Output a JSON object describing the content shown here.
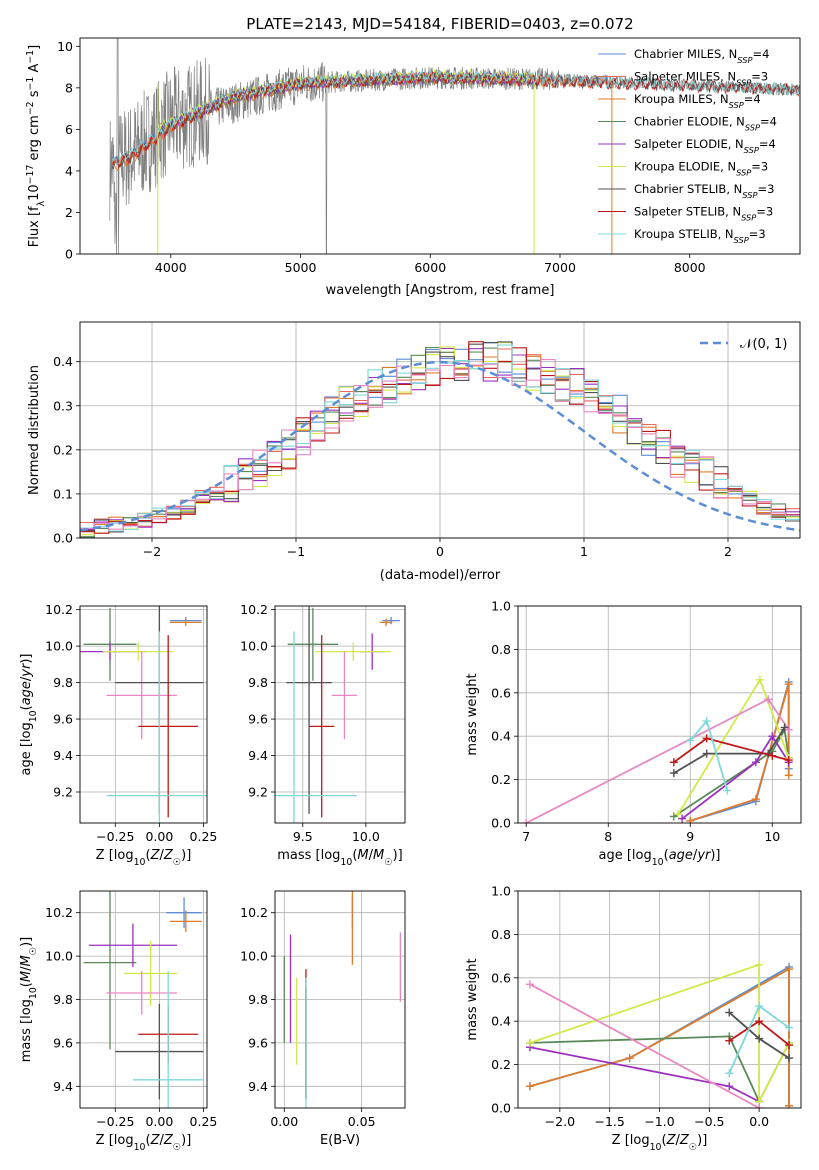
{
  "chart_data": [
    {
      "type": "line",
      "title": "PLATE=2143, MJD=54184, FIBERID=0403, z=0.072",
      "xlabel": "wavelength [Angstrom, rest frame]",
      "ylabel": "Flux [fλ10^-17 erg cm^-2 s^-1 A^-1]",
      "xlim": [
        3300,
        8850
      ],
      "ylim": [
        0,
        10.4
      ],
      "xticks": [
        4000,
        5000,
        6000,
        7000,
        8000
      ],
      "yticks": [
        0,
        2,
        4,
        6,
        8,
        10
      ],
      "grid": false,
      "legend_position": "top-right",
      "data_series": {
        "name": "data",
        "color": "#808080",
        "x_range": [
          3530,
          8850
        ],
        "description_values": {
          "start_flux": 4.3,
          "plateau_flux": 8.3,
          "end_flux": 7.9
        }
      },
      "series": [
        {
          "name": "Chabrier MILES",
          "nssp": "4",
          "color": "#5b8ed6",
          "x": [
            3550,
            3700,
            4000,
            4500,
            5000,
            6000,
            7000,
            7400
          ],
          "y": [
            4.4,
            4.8,
            6.2,
            7.6,
            8.2,
            8.5,
            8.4,
            8.3
          ]
        },
        {
          "name": "Salpeter MILES",
          "nssp": "3",
          "color": "#e86a5c",
          "x": [
            3550,
            3700,
            4000,
            4500,
            5000,
            6000,
            7000,
            7400
          ],
          "y": [
            4.3,
            4.7,
            6.1,
            7.6,
            8.2,
            8.5,
            8.4,
            8.3
          ]
        },
        {
          "name": "Kroupa MILES",
          "nssp": "4",
          "color": "#e07b2a",
          "x": [
            3550,
            3700,
            4000,
            4500,
            5000,
            6000,
            7000,
            7400
          ],
          "y": [
            4.2,
            4.6,
            6.1,
            7.5,
            8.1,
            8.5,
            8.3,
            8.3
          ]
        },
        {
          "name": "Chabrier ELODIE",
          "nssp": "4",
          "color": "#5a8a5a",
          "x": [
            3900,
            4000,
            4500,
            5000,
            6000,
            6800
          ],
          "y": [
            6.0,
            6.3,
            7.6,
            8.2,
            8.5,
            8.4
          ]
        },
        {
          "name": "Salpeter ELODIE",
          "nssp": "4",
          "color": "#9b30c0",
          "x": [
            3900,
            4000,
            4500,
            5000,
            6000,
            6800
          ],
          "y": [
            6.0,
            6.3,
            7.6,
            8.2,
            8.5,
            8.4
          ]
        },
        {
          "name": "Kroupa ELODIE",
          "nssp": "3",
          "color": "#d4e84a",
          "x": [
            3900,
            4000,
            4500,
            5000,
            6000,
            6800
          ],
          "y": [
            6.0,
            6.4,
            7.7,
            8.3,
            8.6,
            8.5
          ]
        },
        {
          "name": "Chabrier STELIB",
          "nssp": "3",
          "color": "#505050",
          "x": [
            3550,
            3700,
            4000,
            4500,
            5000,
            6000,
            7000,
            8850
          ],
          "y": [
            4.3,
            4.7,
            6.1,
            7.6,
            8.2,
            8.5,
            8.3,
            7.9
          ]
        },
        {
          "name": "Salpeter STELIB",
          "nssp": "3",
          "color": "#c01818",
          "x": [
            3550,
            3700,
            4000,
            4500,
            5000,
            6000,
            7000,
            8850
          ],
          "y": [
            4.3,
            4.7,
            6.1,
            7.6,
            8.2,
            8.5,
            8.3,
            7.9
          ]
        },
        {
          "name": "Kroupa STELIB",
          "nssp": "3",
          "color": "#7fd8d8",
          "x": [
            3550,
            3700,
            4000,
            4500,
            5000,
            6000,
            7000,
            8850
          ],
          "y": [
            4.4,
            4.9,
            6.3,
            7.7,
            8.3,
            8.6,
            8.4,
            7.9
          ]
        }
      ]
    },
    {
      "type": "step",
      "xlabel": "(data-model)/error",
      "ylabel": "Normed distribution",
      "xlim": [
        -2.5,
        2.5
      ],
      "ylim": [
        0,
        0.49
      ],
      "xticks": [
        "−2",
        "−1",
        "0",
        "1",
        "2"
      ],
      "xtick_values": [
        -2,
        -1,
        0,
        1,
        2
      ],
      "yticks": [
        0.0,
        0.1,
        0.2,
        0.3,
        0.4
      ],
      "grid": true,
      "reference": {
        "label": "𝒩(0, 1)",
        "mean": 0,
        "sigma": 1,
        "color": "#5b8ed6"
      },
      "bin_width": 0.1,
      "bin_start": -2.5,
      "base_values": [
        0.02,
        0.025,
        0.03,
        0.035,
        0.04,
        0.05,
        0.06,
        0.07,
        0.09,
        0.1,
        0.12,
        0.14,
        0.16,
        0.18,
        0.2,
        0.23,
        0.25,
        0.28,
        0.3,
        0.32,
        0.34,
        0.35,
        0.37,
        0.38,
        0.39,
        0.4,
        0.4,
        0.41,
        0.4,
        0.4,
        0.39,
        0.38,
        0.37,
        0.35,
        0.34,
        0.32,
        0.3,
        0.28,
        0.25,
        0.23,
        0.2,
        0.18,
        0.16,
        0.14,
        0.12,
        0.1,
        0.09,
        0.07,
        0.06,
        0.05
      ],
      "series_colors": [
        "#5b8ed6",
        "#e86a5c",
        "#e07b2a",
        "#5a8a5a",
        "#9b30c0",
        "#d4e84a",
        "#505050",
        "#c01818",
        "#7fd8d8",
        "#e987c3"
      ]
    },
    {
      "type": "errorbar",
      "xlabel": "Z [log10(Z/Z☉)]",
      "ylabel": "age [log10(age/yr)]",
      "xlim": [
        -0.45,
        0.27
      ],
      "ylim": [
        9.03,
        10.22
      ],
      "xticks": [
        "−0.25",
        "0.00",
        "0.25"
      ],
      "xtick_values": [
        -0.25,
        0,
        0.25
      ],
      "yticks": [
        "9.2",
        "9.4",
        "9.6",
        "9.8",
        "10.0",
        "10.2"
      ],
      "ytick_values": [
        9.2,
        9.4,
        9.6,
        9.8,
        10.0,
        10.2
      ],
      "grid": true,
      "points": [
        {
          "x": 0.15,
          "y": 10.14,
          "xerr": 0.09,
          "yerr": 0.02,
          "color": "#5b8ed6"
        },
        {
          "x": 0.15,
          "y": 10.13,
          "xerr": 0.09,
          "yerr": 0.02,
          "color": "#e07b2a"
        },
        {
          "x": -0.28,
          "y": 10.01,
          "xerr": 0.15,
          "yerr": 0.2,
          "color": "#5a8a5a"
        },
        {
          "x": -0.28,
          "y": 9.97,
          "xerr": 0.2,
          "yerr": 0.05,
          "color": "#9b30c0"
        },
        {
          "x": -0.12,
          "y": 9.97,
          "xerr": 0.2,
          "yerr": 0.05,
          "color": "#d4e84a"
        },
        {
          "x": -0.1,
          "y": 9.73,
          "xerr": 0.2,
          "yerr": 0.24,
          "color": "#e987c3"
        },
        {
          "x": 0.0,
          "y": 9.8,
          "xerr": 0.25,
          "yerr": 0.72,
          "color": "#505050"
        },
        {
          "x": 0.05,
          "y": 9.56,
          "xerr": 0.17,
          "yerr": 0.5,
          "color": "#c01818"
        },
        {
          "x": 0.0,
          "y": 9.18,
          "xerr": 0.3,
          "yerr": 0.9,
          "color": "#7fd8d8"
        }
      ]
    },
    {
      "type": "errorbar",
      "xlabel": "mass [log10(M/M☉)]",
      "xlim": [
        9.28,
        10.31
      ],
      "ylim": [
        9.03,
        10.22
      ],
      "xticks": [
        "9.5",
        "10.0"
      ],
      "xtick_values": [
        9.5,
        10.0
      ],
      "yticks": [
        "9.2",
        "9.4",
        "9.6",
        "9.8",
        "10.0",
        "10.2"
      ],
      "ytick_values": [
        9.2,
        9.4,
        9.6,
        9.8,
        10.0,
        10.2
      ],
      "grid": true,
      "points": [
        {
          "x": 10.2,
          "y": 10.14,
          "xerr": 0.07,
          "yerr": 0.02,
          "color": "#5b8ed6"
        },
        {
          "x": 10.16,
          "y": 10.13,
          "xerr": 0.05,
          "yerr": 0.02,
          "color": "#e07b2a"
        },
        {
          "x": 9.58,
          "y": 10.01,
          "xerr": 0.2,
          "yerr": 0.2,
          "color": "#5a8a5a"
        },
        {
          "x": 10.05,
          "y": 9.97,
          "xerr": 0.1,
          "yerr": 0.1,
          "color": "#9b30c0"
        },
        {
          "x": 9.9,
          "y": 9.97,
          "xerr": 0.3,
          "yerr": 0.05,
          "color": "#d4e84a"
        },
        {
          "x": 9.83,
          "y": 9.73,
          "xerr": 0.1,
          "yerr": 0.24,
          "color": "#e987c3"
        },
        {
          "x": 9.55,
          "y": 9.8,
          "xerr": 0.18,
          "yerr": 0.72,
          "color": "#505050"
        },
        {
          "x": 9.65,
          "y": 9.56,
          "xerr": 0.1,
          "yerr": 0.5,
          "color": "#c01818"
        },
        {
          "x": 9.43,
          "y": 9.18,
          "xerr": 0.5,
          "yerr": 0.9,
          "color": "#7fd8d8"
        }
      ]
    },
    {
      "type": "line",
      "xlabel": "age [log10(age/yr)]",
      "ylabel": "mass weight",
      "xlim": [
        6.9,
        10.35
      ],
      "ylim": [
        0,
        1.0
      ],
      "xticks": [
        "7",
        "8",
        "9",
        "10"
      ],
      "xtick_values": [
        7,
        8,
        9,
        10
      ],
      "yticks": [
        "0.0",
        "0.2",
        "0.4",
        "0.6",
        "0.8",
        "1.0"
      ],
      "ytick_values": [
        0.0,
        0.2,
        0.4,
        0.6,
        0.8,
        1.0
      ],
      "grid": true,
      "series": [
        {
          "color": "#5b8ed6",
          "x": [
            9.0,
            9.8,
            10.2,
            10.2
          ],
          "y": [
            0.01,
            0.1,
            0.65,
            0.25
          ]
        },
        {
          "color": "#e07b2a",
          "x": [
            9.0,
            9.8,
            10.2,
            10.2
          ],
          "y": [
            0.01,
            0.11,
            0.64,
            0.22
          ]
        },
        {
          "color": "#5a8a5a",
          "x": [
            8.8,
            10.0,
            10.15,
            10.2
          ],
          "y": [
            0.03,
            0.33,
            0.43,
            0.3
          ]
        },
        {
          "color": "#9b30c0",
          "x": [
            8.9,
            9.8,
            10.0,
            10.2
          ],
          "y": [
            0.02,
            0.28,
            0.4,
            0.28
          ]
        },
        {
          "color": "#d4e84a",
          "x": [
            8.85,
            9.85,
            10.2
          ],
          "y": [
            0.04,
            0.66,
            0.3
          ]
        },
        {
          "color": "#e987c3",
          "x": [
            7.0,
            9.95,
            10.2
          ],
          "y": [
            0.0,
            0.57,
            0.43
          ]
        },
        {
          "color": "#505050",
          "x": [
            8.8,
            9.2,
            9.95,
            10.15
          ],
          "y": [
            0.23,
            0.32,
            0.32,
            0.44
          ]
        },
        {
          "color": "#c01818",
          "x": [
            8.8,
            9.2,
            10.0,
            10.2
          ],
          "y": [
            0.28,
            0.39,
            0.31,
            0.29
          ]
        },
        {
          "color": "#7fd8d8",
          "x": [
            9.0,
            9.2,
            9.45
          ],
          "y": [
            0.38,
            0.47,
            0.15
          ]
        }
      ]
    },
    {
      "type": "errorbar",
      "xlabel": "Z [log10(Z/Z☉)]",
      "ylabel": "mass [log10(M/M☉)]",
      "xlim": [
        -0.45,
        0.27
      ],
      "ylim": [
        9.3,
        10.3
      ],
      "xticks": [
        "−0.25",
        "0.00",
        "0.25"
      ],
      "xtick_values": [
        -0.25,
        0,
        0.25
      ],
      "yticks": [
        "9.4",
        "9.6",
        "9.8",
        "10.0",
        "10.2"
      ],
      "ytick_values": [
        9.4,
        9.6,
        9.8,
        10.0,
        10.2
      ],
      "grid": true,
      "points": [
        {
          "x": 0.14,
          "y": 10.2,
          "xerr": 0.1,
          "yerr": 0.07,
          "color": "#5b8ed6"
        },
        {
          "x": 0.15,
          "y": 10.16,
          "xerr": 0.09,
          "yerr": 0.05,
          "color": "#e07b2a"
        },
        {
          "x": -0.28,
          "y": 9.97,
          "xerr": 0.15,
          "yerr": 0.4,
          "color": "#5a8a5a"
        },
        {
          "x": -0.15,
          "y": 10.05,
          "xerr": 0.25,
          "yerr": 0.1,
          "color": "#9b30c0"
        },
        {
          "x": -0.05,
          "y": 9.92,
          "xerr": 0.15,
          "yerr": 0.15,
          "color": "#d4e84a"
        },
        {
          "x": -0.1,
          "y": 9.83,
          "xerr": 0.2,
          "yerr": 0.1,
          "color": "#e987c3"
        },
        {
          "x": 0.0,
          "y": 9.56,
          "xerr": 0.25,
          "yerr": 0.22,
          "color": "#505050"
        },
        {
          "x": 0.05,
          "y": 9.64,
          "xerr": 0.17,
          "yerr": 0.13,
          "color": "#c01818"
        },
        {
          "x": 0.05,
          "y": 9.43,
          "xerr": 0.2,
          "yerr": 0.5,
          "color": "#7fd8d8"
        }
      ]
    },
    {
      "type": "errorbar",
      "xlabel": "E(B-V)",
      "xlim": [
        -0.006,
        0.078
      ],
      "ylim": [
        9.3,
        10.3
      ],
      "xticks": [
        "0.00",
        "0.05"
      ],
      "xtick_values": [
        0.0,
        0.05
      ],
      "yticks": [
        "9.4",
        "9.6",
        "9.8",
        "10.0",
        "10.2"
      ],
      "ytick_values": [
        9.4,
        9.6,
        9.8,
        10.0,
        10.2
      ],
      "grid": true,
      "points": [
        {
          "x": 0.044,
          "y": 10.2,
          "yerr": 0.07,
          "color": "#5b8ed6"
        },
        {
          "x": 0.044,
          "y": 10.16,
          "yerr": 0.2,
          "color": "#e07b2a"
        },
        {
          "x": 0.0,
          "y": 9.8,
          "yerr": 0.2,
          "color": "#5a8a5a"
        },
        {
          "x": 0.004,
          "y": 9.85,
          "yerr": 0.25,
          "color": "#9b30c0"
        },
        {
          "x": 0.008,
          "y": 9.7,
          "yerr": 0.2,
          "color": "#d4e84a"
        },
        {
          "x": 0.075,
          "y": 9.95,
          "yerr": 0.16,
          "color": "#e987c3"
        },
        {
          "x": 0.014,
          "y": 9.6,
          "yerr": 0.25,
          "color": "#505050"
        },
        {
          "x": 0.014,
          "y": 9.64,
          "yerr": 0.3,
          "color": "#c01818"
        },
        {
          "x": 0.014,
          "y": 9.55,
          "yerr": 0.35,
          "color": "#7fd8d8"
        }
      ]
    },
    {
      "type": "line",
      "xlabel": "Z [log10(Z/Z☉)]",
      "ylabel": "mass weight",
      "xlim": [
        -2.42,
        0.42
      ],
      "ylim": [
        0,
        1.0
      ],
      "xticks": [
        "−2.0",
        "−1.5",
        "−1.0",
        "−0.5",
        "0.0"
      ],
      "xtick_values": [
        -2.0,
        -1.5,
        -1.0,
        -0.5,
        0.0
      ],
      "yticks": [
        "0.0",
        "0.2",
        "0.4",
        "0.6",
        "0.8",
        "1.0"
      ],
      "ytick_values": [
        0.0,
        0.2,
        0.4,
        0.6,
        0.8,
        1.0
      ],
      "grid": true,
      "series": [
        {
          "color": "#5b8ed6",
          "x": [
            -2.3,
            -1.3,
            0.3,
            0.3
          ],
          "y": [
            0.1,
            0.23,
            0.65,
            0.01
          ]
        },
        {
          "color": "#e07b2a",
          "x": [
            -2.3,
            -1.3,
            0.3,
            0.3
          ],
          "y": [
            0.1,
            0.23,
            0.64,
            0.01
          ]
        },
        {
          "color": "#5a8a5a",
          "x": [
            -2.3,
            -0.3,
            0.0,
            0.3
          ],
          "y": [
            0.3,
            0.33,
            0.03,
            0.3
          ]
        },
        {
          "color": "#9b30c0",
          "x": [
            -2.3,
            -0.3,
            0.0
          ],
          "y": [
            0.28,
            0.1,
            0.03
          ]
        },
        {
          "color": "#d4e84a",
          "x": [
            -2.3,
            0.0,
            0.0,
            0.3
          ],
          "y": [
            0.3,
            0.66,
            0.03,
            0.3
          ]
        },
        {
          "color": "#e987c3",
          "x": [
            -2.3,
            0.0
          ],
          "y": [
            0.57,
            0.0
          ]
        },
        {
          "color": "#505050",
          "x": [
            -0.3,
            0.0,
            0.3
          ],
          "y": [
            0.44,
            0.32,
            0.23
          ]
        },
        {
          "color": "#c01818",
          "x": [
            -0.3,
            0.0,
            0.3
          ],
          "y": [
            0.31,
            0.4,
            0.29
          ]
        },
        {
          "color": "#7fd8d8",
          "x": [
            -0.3,
            0.0,
            0.3
          ],
          "y": [
            0.16,
            0.47,
            0.37
          ]
        }
      ]
    }
  ]
}
